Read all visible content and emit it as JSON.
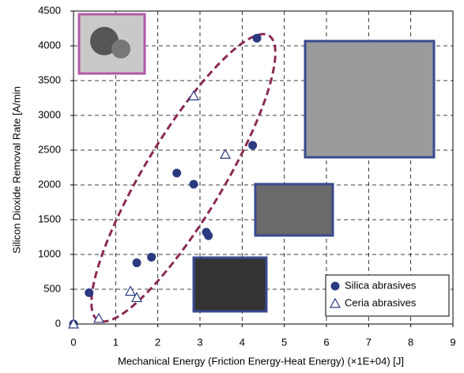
{
  "chart_data": {
    "type": "scatter",
    "x_label": "Mechanical Energy (Friction Energy-Heat Energy) (×1E+04) [J]",
    "y_label": "Silicon Dioxide Removal Rate [A/min",
    "xlim": [
      0,
      9
    ],
    "xticks": [
      0,
      1,
      2,
      3,
      4,
      5,
      6,
      7,
      8,
      9
    ],
    "ylim": [
      0,
      4500
    ],
    "yticks": [
      0,
      500,
      1000,
      1500,
      2000,
      2500,
      3000,
      3500,
      4000,
      4500
    ],
    "grid": true,
    "legend": "lower right",
    "series": [
      {
        "name": "Silica abrasives",
        "color": "#2b3a80",
        "marker": "circle",
        "x": [
          0,
          0.37,
          1.5,
          1.85,
          2.45,
          2.85,
          3.15,
          3.2,
          4.25,
          4.35
        ],
        "values": [
          0,
          450,
          880,
          960,
          2170,
          2010,
          1320,
          1270,
          2570,
          4110
        ]
      },
      {
        "name": "Ceria abrasives",
        "color": "#2b3a80",
        "marker": "triangle",
        "x": [
          0,
          0.6,
          1.35,
          1.5,
          2.85,
          3.6
        ],
        "values": [
          0,
          80,
          470,
          380,
          3280,
          2440
        ]
      }
    ]
  }
}
